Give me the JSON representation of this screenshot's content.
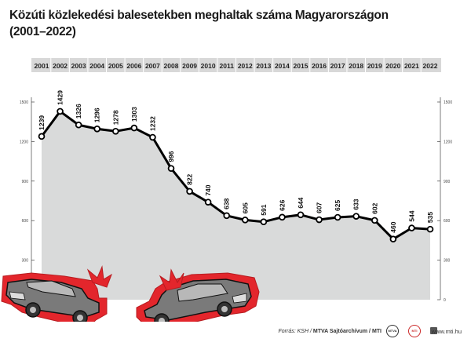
{
  "title": {
    "line1": "Közúti közlekedési balesetekben meghaltak száma Magyarországon",
    "line2": "(2001–2022)"
  },
  "chart_data": {
    "type": "area",
    "title": "Közúti közlekedési balesetekben meghaltak száma Magyarországon (2001–2022)",
    "categories": [
      "2001",
      "2002",
      "2003",
      "2004",
      "2005",
      "2006",
      "2007",
      "2008",
      "2009",
      "2010",
      "2011",
      "2012",
      "2013",
      "2014",
      "2015",
      "2016",
      "2017",
      "2018",
      "2019",
      "2020",
      "2021",
      "2022"
    ],
    "values": [
      1239,
      1429,
      1326,
      1296,
      1278,
      1303,
      1232,
      996,
      822,
      740,
      638,
      605,
      591,
      626,
      644,
      607,
      625,
      633,
      602,
      460,
      544,
      535
    ],
    "ylim": [
      0,
      1500
    ],
    "yticks": [
      0,
      300,
      600,
      900,
      1200,
      1500
    ],
    "grid": false,
    "legend": "none",
    "colors": {
      "line": "#000000",
      "fill": "#d9dada",
      "year_band": "#d8d8d8",
      "car_outline": "#e3262c",
      "car_body": "#7a7a7a"
    }
  },
  "footer": {
    "source_prefix": "Forrás: KSH /",
    "source_strong": "MTVA Sajtóarchívum / MTI",
    "logo_left": "MTVA",
    "logo_right": "MTI",
    "site": "www.mti.hu",
    "site_icon": "grid-icon"
  }
}
